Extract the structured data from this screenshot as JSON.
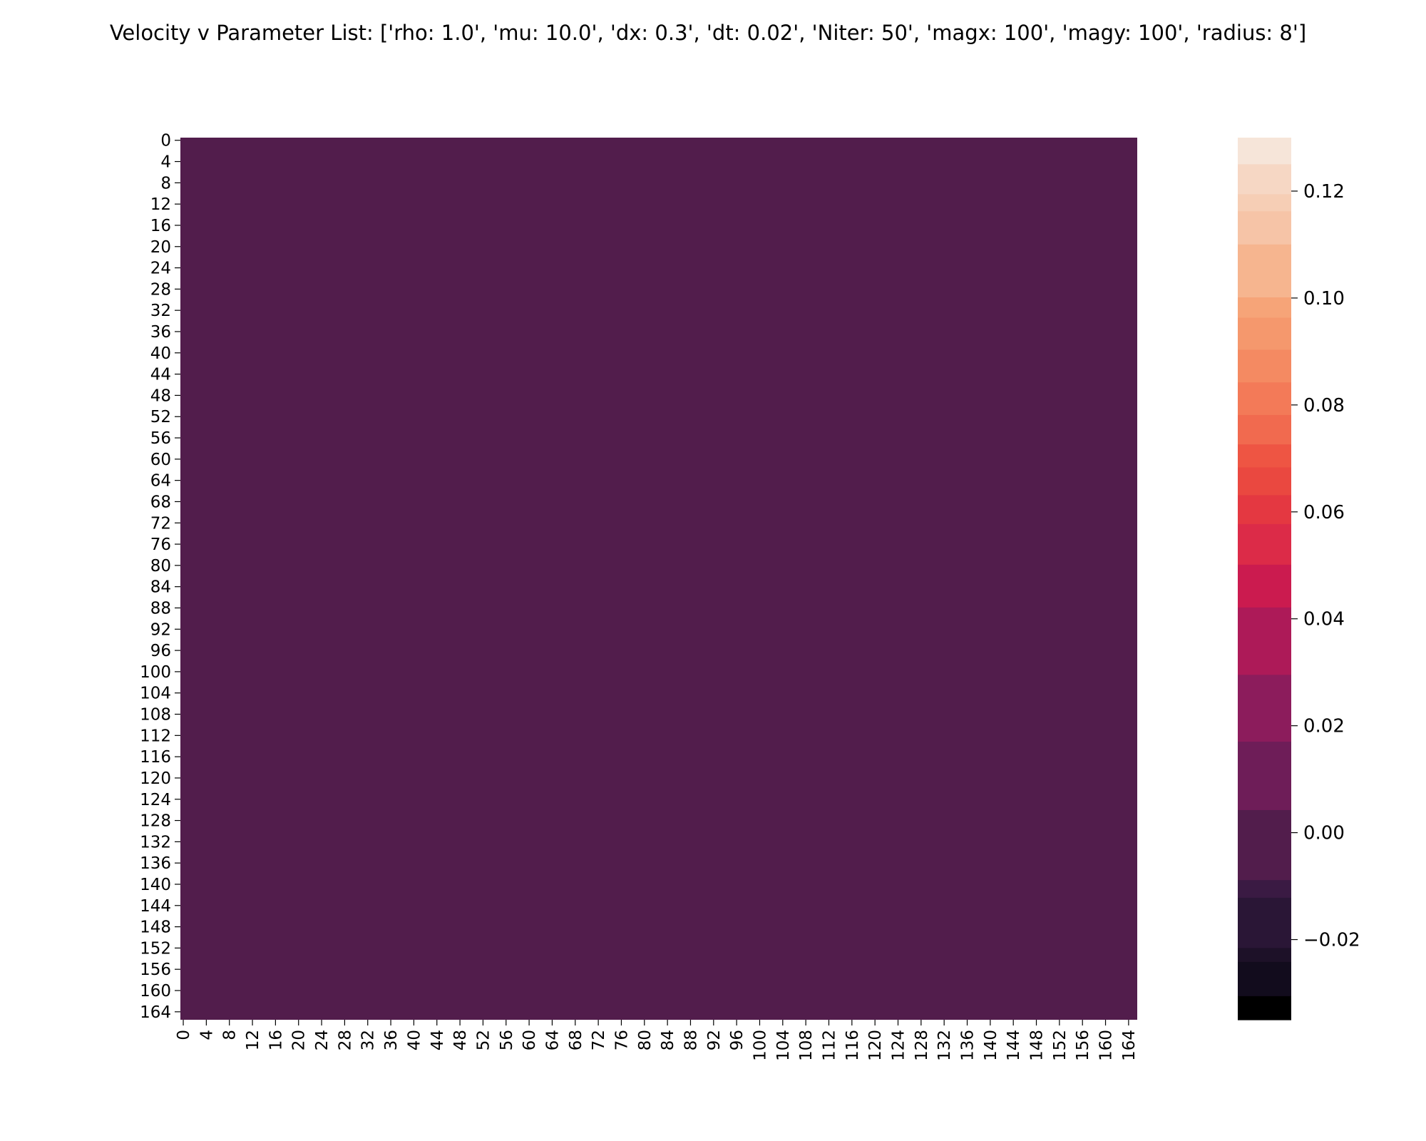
{
  "chart_data": {
    "type": "heatmap",
    "title": "Velocity v Parameter List: ['rho: 1.0', 'mu: 10.0', 'dx: 0.3', 'dt: 0.02', 'Niter: 50', 'magx: 100', 'magy: 100', 'radius: 8']",
    "xlabel": "",
    "ylabel": "",
    "rows": 166,
    "cols": 166,
    "x_tick_labels": [
      "0",
      "4",
      "8",
      "12",
      "16",
      "20",
      "24",
      "28",
      "32",
      "36",
      "40",
      "44",
      "48",
      "52",
      "56",
      "60",
      "64",
      "68",
      "72",
      "76",
      "80",
      "84",
      "88",
      "92",
      "96",
      "100",
      "104",
      "108",
      "112",
      "116",
      "120",
      "124",
      "128",
      "132",
      "136",
      "140",
      "144",
      "148",
      "152",
      "156",
      "160",
      "164"
    ],
    "y_tick_labels": [
      "0",
      "4",
      "8",
      "12",
      "16",
      "20",
      "24",
      "28",
      "32",
      "36",
      "40",
      "44",
      "48",
      "52",
      "56",
      "60",
      "64",
      "68",
      "72",
      "76",
      "80",
      "84",
      "88",
      "92",
      "96",
      "100",
      "104",
      "108",
      "112",
      "116",
      "120",
      "124",
      "128",
      "132",
      "136",
      "140",
      "144",
      "148",
      "152",
      "156",
      "160",
      "164"
    ],
    "uniform_value": 0.0,
    "uniform_color": "#521d4c",
    "colorbar": {
      "vmin": -0.035,
      "vmax": 0.13,
      "ticks": [
        -0.02,
        0.0,
        0.02,
        0.04,
        0.06,
        0.08,
        0.1,
        0.12
      ],
      "tick_labels": [
        "−0.02",
        "0.00",
        "0.02",
        "0.04",
        "0.06",
        "0.08",
        "0.10",
        "0.12"
      ],
      "levels": [
        {
          "from": -0.035,
          "to": -0.0305,
          "color": "#000000"
        },
        {
          "from": -0.0305,
          "to": -0.0241,
          "color": "#120c1d"
        },
        {
          "from": -0.0241,
          "to": -0.0215,
          "color": "#1d1128"
        },
        {
          "from": -0.0215,
          "to": -0.0121,
          "color": "#2a1636"
        },
        {
          "from": -0.0121,
          "to": -0.0088,
          "color": "#3a1a43"
        },
        {
          "from": -0.0088,
          "to": 0.0043,
          "color": "#521d4c"
        },
        {
          "from": 0.0043,
          "to": 0.0171,
          "color": "#6e1d58"
        },
        {
          "from": 0.0171,
          "to": 0.0296,
          "color": "#8c1c5c"
        },
        {
          "from": 0.0296,
          "to": 0.0422,
          "color": "#ad1a58"
        },
        {
          "from": 0.0422,
          "to": 0.0502,
          "color": "#cb1b4f"
        },
        {
          "from": 0.0502,
          "to": 0.0578,
          "color": "#dc2b48"
        },
        {
          "from": 0.0578,
          "to": 0.0632,
          "color": "#e43841"
        },
        {
          "from": 0.0632,
          "to": 0.0684,
          "color": "#ea4840"
        },
        {
          "from": 0.0684,
          "to": 0.0727,
          "color": "#ee5543"
        },
        {
          "from": 0.0727,
          "to": 0.0782,
          "color": "#f16a4f"
        },
        {
          "from": 0.0782,
          "to": 0.0843,
          "color": "#f37a58"
        },
        {
          "from": 0.0843,
          "to": 0.0904,
          "color": "#f48a62"
        },
        {
          "from": 0.0904,
          "to": 0.0964,
          "color": "#f5986d"
        },
        {
          "from": 0.0964,
          "to": 0.1002,
          "color": "#f6a478"
        },
        {
          "from": 0.1002,
          "to": 0.1101,
          "color": "#f6b58f"
        },
        {
          "from": 0.1101,
          "to": 0.1163,
          "color": "#f6c4a7"
        },
        {
          "from": 0.1163,
          "to": 0.1195,
          "color": "#f6ceb5"
        },
        {
          "from": 0.1195,
          "to": 0.1251,
          "color": "#f6d7c4"
        },
        {
          "from": 0.1251,
          "to": 0.13,
          "color": "#f6e5d9"
        }
      ]
    }
  }
}
